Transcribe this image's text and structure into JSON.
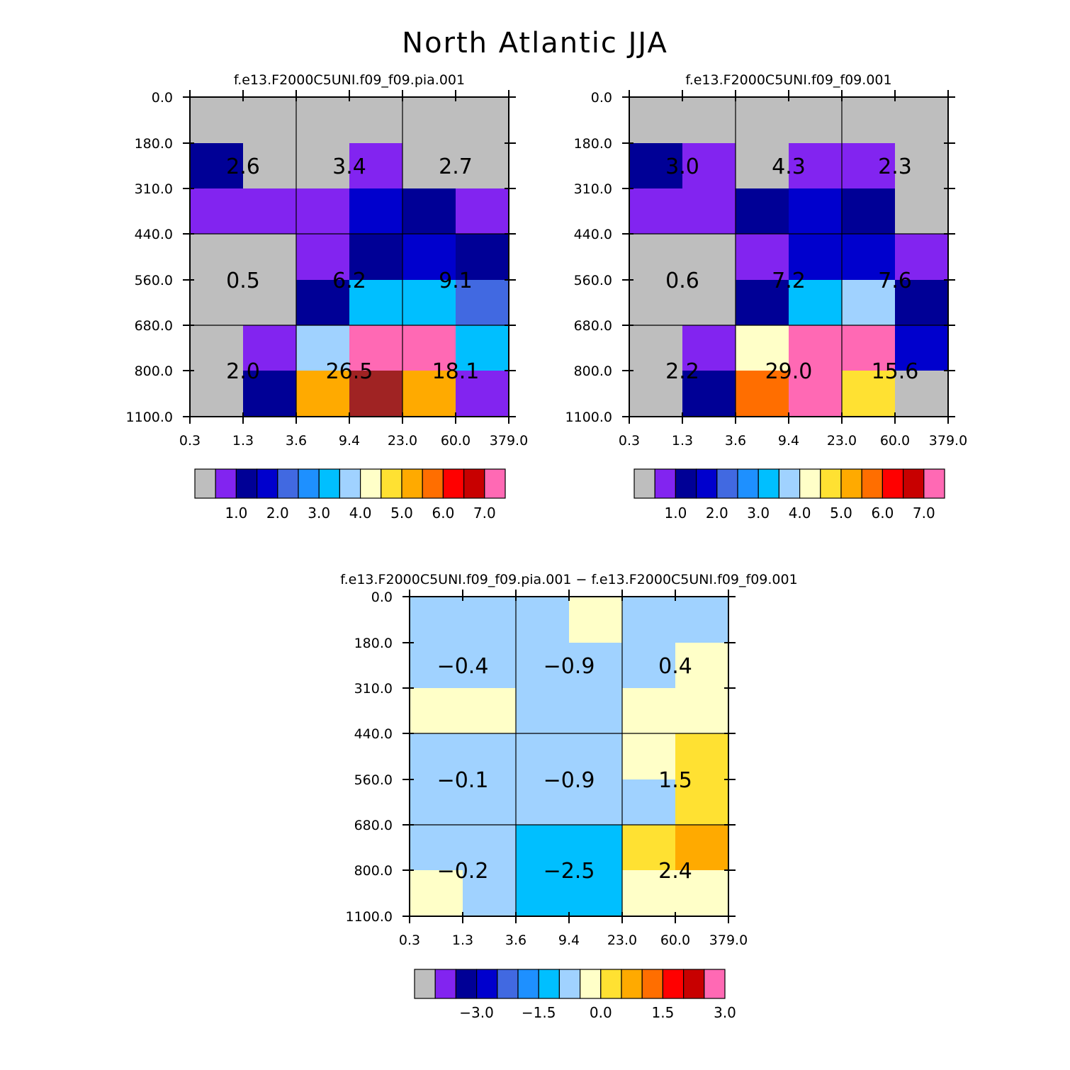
{
  "title": "North Atlantic JJA",
  "palette": {
    "0": "#bebebe",
    "1": "#8224f0",
    "2": "#000096",
    "3": "#0000cd",
    "4": "#4169e1",
    "5": "#1e90ff",
    "6": "#00bfff",
    "7": "#a0d2ff",
    "8": "#ffffc8",
    "9": "#ffe132",
    "10": "#ffaa00",
    "11": "#ff6e00",
    "12": "#ff0000",
    "13": "#c80000",
    "14": "#a02323",
    "15": "#ff69b4"
  },
  "chart_data": [
    {
      "type": "heatmap",
      "title": "f.e13.F2000C5UNI.f09_f09.pia.001",
      "x_ticks": [
        "0.3",
        "1.3",
        "3.6",
        "9.4",
        "23.0",
        "60.0",
        "379.0"
      ],
      "y_ticks": [
        "0.0",
        "180.0",
        "310.0",
        "440.0",
        "560.0",
        "680.0",
        "800.0",
        "1100.0"
      ],
      "grid_colors": [
        [
          0,
          0,
          0,
          0,
          0,
          0
        ],
        [
          2,
          0,
          0,
          1,
          0,
          0
        ],
        [
          1,
          1,
          1,
          3,
          2,
          1
        ],
        [
          0,
          0,
          1,
          2,
          3,
          2
        ],
        [
          0,
          0,
          2,
          6,
          6,
          4
        ],
        [
          0,
          1,
          7,
          15,
          15,
          6
        ],
        [
          0,
          2,
          10,
          14,
          10,
          1
        ]
      ],
      "box_values": [
        [
          "2.6",
          "3.4",
          "2.7"
        ],
        [
          "0.5",
          "6.2",
          "9.1"
        ],
        [
          "2.0",
          "26.5",
          "18.1"
        ]
      ],
      "colorbar": {
        "colors": [
          0,
          1,
          2,
          3,
          4,
          5,
          6,
          7,
          8,
          9,
          10,
          11,
          12,
          13,
          15
        ],
        "labels": [
          "1.0",
          "2.0",
          "3.0",
          "4.0",
          "5.0",
          "6.0",
          "7.0"
        ],
        "label_start_box": 1,
        "label_step": 2
      }
    },
    {
      "type": "heatmap",
      "title": "f.e13.F2000C5UNI.f09_f09.001",
      "x_ticks": [
        "0.3",
        "1.3",
        "3.6",
        "9.4",
        "23.0",
        "60.0",
        "379.0"
      ],
      "y_ticks": [
        "0.0",
        "180.0",
        "310.0",
        "440.0",
        "560.0",
        "680.0",
        "800.0",
        "1100.0"
      ],
      "grid_colors": [
        [
          0,
          0,
          0,
          0,
          0,
          0
        ],
        [
          2,
          1,
          0,
          1,
          1,
          0
        ],
        [
          1,
          1,
          2,
          3,
          2,
          0
        ],
        [
          0,
          0,
          1,
          3,
          3,
          1
        ],
        [
          0,
          0,
          2,
          6,
          7,
          2
        ],
        [
          0,
          1,
          8,
          15,
          15,
          3
        ],
        [
          0,
          2,
          11,
          15,
          9,
          0
        ]
      ],
      "box_values": [
        [
          "3.0",
          "4.3",
          "2.3"
        ],
        [
          "0.6",
          "7.2",
          "7.6"
        ],
        [
          "2.2",
          "29.0",
          "15.6"
        ]
      ],
      "colorbar": {
        "colors": [
          0,
          1,
          2,
          3,
          4,
          5,
          6,
          7,
          8,
          9,
          10,
          11,
          12,
          13,
          15
        ],
        "labels": [
          "1.0",
          "2.0",
          "3.0",
          "4.0",
          "5.0",
          "6.0",
          "7.0"
        ],
        "label_start_box": 1,
        "label_step": 2
      }
    },
    {
      "type": "heatmap",
      "title": "f.e13.F2000C5UNI.f09_f09.pia.001 − f.e13.F2000C5UNI.f09_f09.001",
      "x_ticks": [
        "0.3",
        "1.3",
        "3.6",
        "9.4",
        "23.0",
        "60.0",
        "379.0"
      ],
      "y_ticks": [
        "0.0",
        "180.0",
        "310.0",
        "440.0",
        "560.0",
        "680.0",
        "800.0",
        "1100.0"
      ],
      "grid_colors": [
        [
          7,
          7,
          7,
          8,
          7,
          7
        ],
        [
          7,
          7,
          7,
          7,
          7,
          8
        ],
        [
          8,
          8,
          7,
          7,
          8,
          8
        ],
        [
          7,
          7,
          7,
          7,
          8,
          9
        ],
        [
          7,
          7,
          7,
          7,
          7,
          9
        ],
        [
          7,
          7,
          6,
          6,
          9,
          10
        ],
        [
          8,
          7,
          6,
          6,
          8,
          8
        ]
      ],
      "box_values": [
        [
          "−0.4",
          "−0.9",
          "0.4"
        ],
        [
          "−0.1",
          "−0.9",
          "1.5"
        ],
        [
          "−0.2",
          "−2.5",
          "2.4"
        ]
      ],
      "colorbar": {
        "colors": [
          0,
          1,
          2,
          3,
          4,
          5,
          6,
          7,
          8,
          9,
          10,
          11,
          12,
          13,
          15
        ],
        "labels": [
          "−3.0",
          "−1.5",
          "0.0",
          "1.5",
          "3.0"
        ],
        "label_start_box": 2,
        "label_step": 3
      }
    }
  ]
}
